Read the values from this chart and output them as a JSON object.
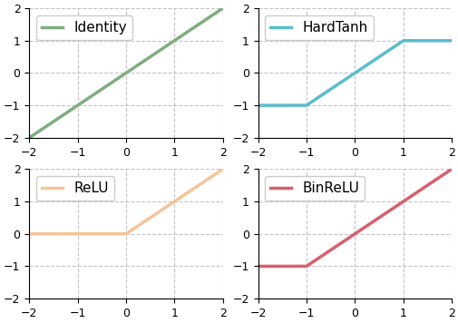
{
  "subplots": [
    {
      "label": "Identity",
      "color": "#7fad7f",
      "linewidth": 2.5,
      "func": "identity"
    },
    {
      "label": "HardTanh",
      "color": "#5bbccc",
      "linewidth": 2.5,
      "func": "hardtanh"
    },
    {
      "label": "ReLU",
      "color": "#f5c49a",
      "linewidth": 2.5,
      "func": "relu"
    },
    {
      "label": "BinReLU",
      "color": "#d95f6e",
      "linewidth": 2.5,
      "func": "binrelu"
    }
  ],
  "xlim": [
    -2,
    2
  ],
  "ylim": [
    -2,
    2
  ],
  "xticks": [
    -2,
    -1,
    0,
    1,
    2
  ],
  "yticks": [
    -2,
    -1,
    0,
    1,
    2
  ],
  "grid_color": "#aaaaaa",
  "grid_linestyle": "--",
  "grid_alpha": 0.7,
  "legend_fontsize": 11,
  "tick_fontsize": 9
}
